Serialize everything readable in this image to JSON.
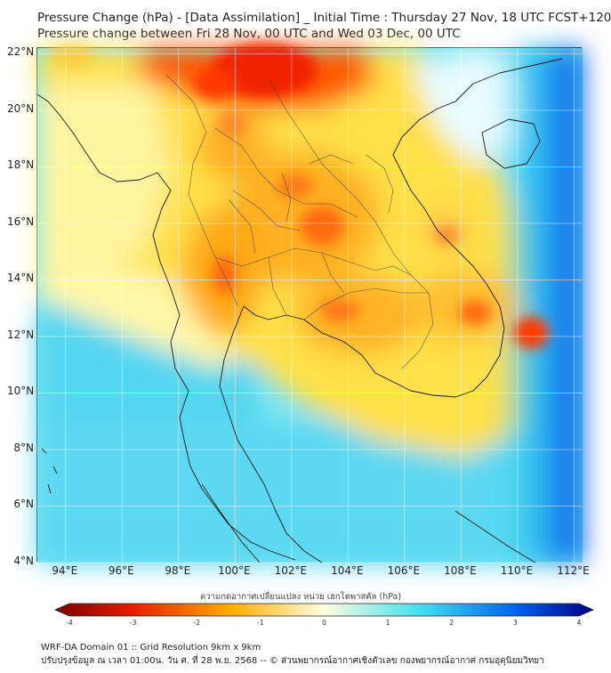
{
  "header": {
    "line1": "Pressure Change (hPa) - [Data Assimilation] _ Initial Time : Thursday 27 Nov, 18 UTC FCST+120",
    "line2": "Pressure change between Fri 28 Nov, 00 UTC and Wed 03 Dec, 00 UTC"
  },
  "map": {
    "lat_labels": [
      "22°N",
      "20°N",
      "18°N",
      "16°N",
      "14°N",
      "12°N",
      "10°N",
      "8°N",
      "6°N",
      "4°N"
    ],
    "lon_labels": [
      "94°E",
      "96°E",
      "98°E",
      "100°E",
      "102°E",
      "104°E",
      "106°E",
      "108°E",
      "110°E",
      "112°E"
    ],
    "lat_range": [
      4,
      22.2
    ],
    "lon_range": [
      93,
      112.3
    ],
    "gridlines": true
  },
  "colorbar": {
    "title": "ความกดอากาศเปลี่ยนแปลง หน่วย เฮกโตพาสคัล (hPa)",
    "ticks": [
      "-4",
      "-3",
      "-2",
      "-1",
      "0",
      "1",
      "2",
      "3",
      "4"
    ],
    "range": [
      -4,
      4
    ],
    "colors": {
      "deep_negative": "#7a0000",
      "negative": "#e81a00",
      "mid_negative": "#ffb000",
      "zero": "#fffde0",
      "mid_positive": "#3ee0f0",
      "positive": "#0060f0",
      "deep_positive": "#00008a"
    }
  },
  "footer": {
    "line1": "WRF-DA Domain 01 :: Grid Resolution 9km x 9km",
    "line2": "ปรับปรุงข้อมูล ณ เวลา 01:00น. วัน ศ. ที่ 28 พ.ย. 2568 -- © ส่วนพยากรณ์อากาศเชิงตัวเลข กองพยากรณ์อากาศ กรมอุตุนิยมวิทยา"
  }
}
